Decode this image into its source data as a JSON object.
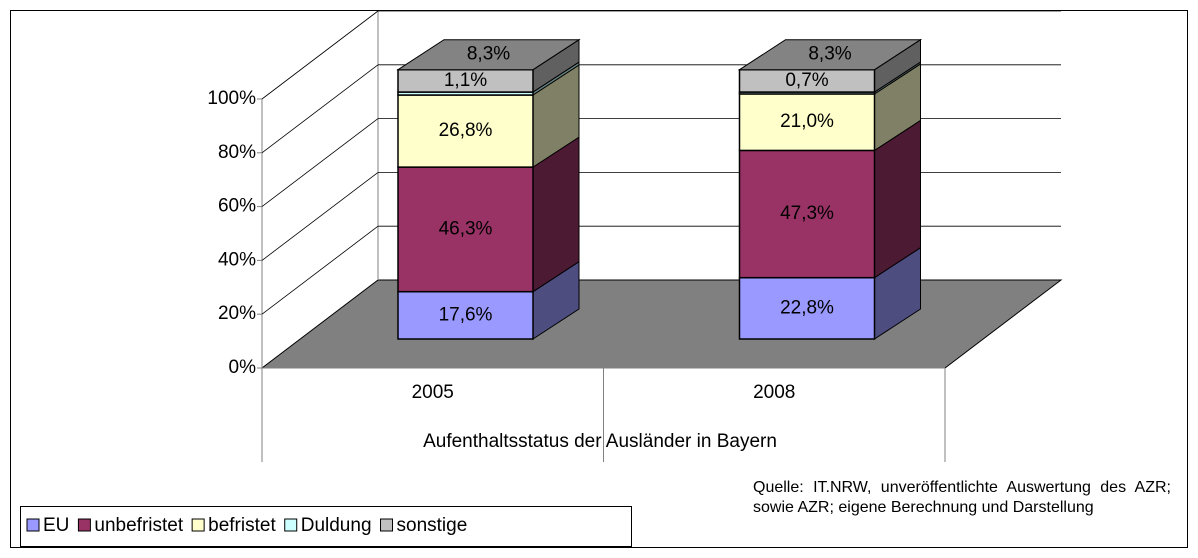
{
  "chart_data": {
    "type": "stacked_bar_3d",
    "x_label": "Aufenthaltsstatus der Ausländer in Bayern",
    "categories": [
      "2005",
      "2008"
    ],
    "series": [
      {
        "name": "EU",
        "color": "#9999ff",
        "values": [
          17.6,
          22.8
        ],
        "value_labels": [
          "17,6%",
          "22,8%"
        ]
      },
      {
        "name": "unbefristet",
        "color": "#993366",
        "values": [
          46.3,
          47.3
        ],
        "value_labels": [
          "46,3%",
          "47,3%"
        ]
      },
      {
        "name": "befristet",
        "color": "#ffffcc",
        "values": [
          26.8,
          21.0
        ],
        "value_labels": [
          "26,8%",
          "21,0%"
        ]
      },
      {
        "name": "Duldung",
        "color": "#ccffff",
        "values": [
          1.1,
          0.7
        ],
        "value_labels": [
          "1,1%",
          "0,7%"
        ]
      },
      {
        "name": "sonstige",
        "color": "#c0c0c0",
        "values": [
          8.3,
          8.3
        ],
        "value_labels": [
          "8,3%",
          "8,3%"
        ]
      }
    ],
    "ylim": [
      0,
      100
    ],
    "yticks": [
      {
        "value": 0,
        "label": "0%"
      },
      {
        "value": 20,
        "label": "20%"
      },
      {
        "value": 40,
        "label": "40%"
      },
      {
        "value": 60,
        "label": "60%"
      },
      {
        "value": 80,
        "label": "80%"
      },
      {
        "value": 100,
        "label": "100%"
      }
    ],
    "grid": true,
    "legend": "bottom-left",
    "source": "Quelle: IT.NRW, unveröffentlichte Auswertung des AZR; sowie AZR; eigene Berechnung und Darstellung"
  }
}
